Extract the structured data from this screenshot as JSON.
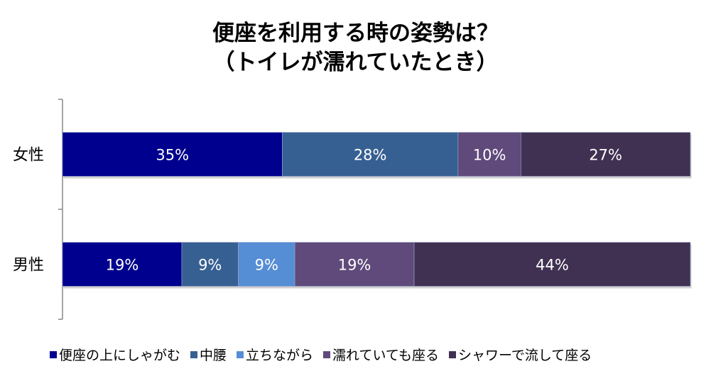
{
  "chart_data": {
    "type": "bar",
    "orientation": "horizontal",
    "stacked": "percent",
    "title": "便座を利用する時の姿勢は？",
    "subtitle": "（トイレが濡れていたとき）",
    "categories": [
      "女性",
      "男性"
    ],
    "series": [
      {
        "name": "便座の上にしゃがむ",
        "color": "#00008E",
        "values": [
          35,
          19
        ],
        "labels": [
          "35%",
          "19%"
        ]
      },
      {
        "name": "中腰",
        "color": "#376092",
        "values": [
          28,
          9
        ],
        "labels": [
          "28%",
          "9%"
        ]
      },
      {
        "name": "立ちながら",
        "color": "#558ED5",
        "values": [
          0,
          9
        ],
        "labels": [
          "",
          "9%"
        ]
      },
      {
        "name": "濡れていても座る",
        "color": "#604A7B",
        "values": [
          10,
          19
        ],
        "labels": [
          "10%",
          "19%"
        ]
      },
      {
        "name": "シャワーで流して座る",
        "color": "#403152",
        "values": [
          27,
          44
        ],
        "labels": [
          "27%",
          "44%"
        ]
      }
    ],
    "xlim": [
      0,
      100
    ],
    "grid": false,
    "legend": "bottom"
  }
}
